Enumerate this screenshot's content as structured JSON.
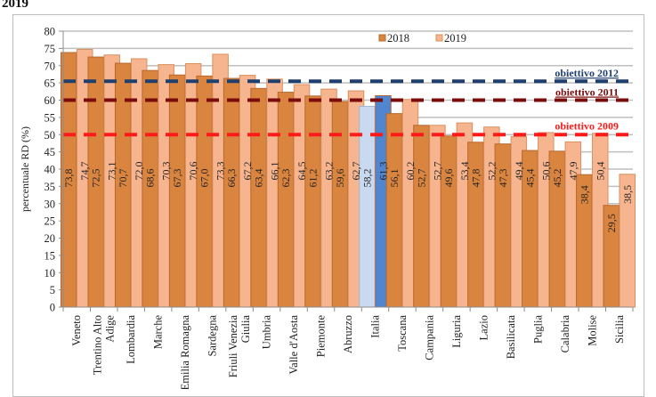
{
  "title": "2019",
  "chart_data": {
    "type": "bar",
    "ylabel": "percentuale RD (%)",
    "xlabel": "",
    "ylim": [
      0,
      80
    ],
    "yticks": [
      0,
      5,
      10,
      15,
      20,
      25,
      30,
      35,
      40,
      45,
      50,
      55,
      60,
      65,
      70,
      75,
      80
    ],
    "grid": true,
    "legend_position": "top-right",
    "categories": [
      [
        "Veneto"
      ],
      [
        "Trentino Alto",
        "Adige"
      ],
      [
        "Lombardia"
      ],
      [
        "Marche"
      ],
      [
        "Emilia Romagna"
      ],
      [
        "Sardegna"
      ],
      [
        "Friuli Venezia",
        "Giulia"
      ],
      [
        "Umbria"
      ],
      [
        "Valle d'Aosta"
      ],
      [
        "Piemonte"
      ],
      [
        "Abruzzo"
      ],
      [
        "Italia"
      ],
      [
        "Toscana"
      ],
      [
        "Campania"
      ],
      [
        "Liguria"
      ],
      [
        "Lazio"
      ],
      [
        "Basilicata"
      ],
      [
        "Puglia"
      ],
      [
        "Calabria"
      ],
      [
        "Molise"
      ],
      [
        "Sicilia"
      ]
    ],
    "series": [
      {
        "name": "2018",
        "color": "#d9843f",
        "highlight_color": "#c9daf0",
        "values": [
          73.8,
          72.5,
          70.7,
          68.6,
          67.3,
          67.0,
          66.3,
          63.4,
          62.3,
          61.2,
          59.6,
          58.2,
          56.1,
          52.7,
          49.6,
          47.8,
          47.3,
          45.4,
          45.2,
          38.4,
          29.5
        ],
        "labels": [
          "73,8",
          "72,5",
          "70,7",
          "68,6",
          "67,3",
          "67,0",
          "66,3",
          "63,4",
          "62,3",
          "61,2",
          "59,6",
          "58,2",
          "56,1",
          "52,7",
          "49,6",
          "47,8",
          "47,3",
          "45,4",
          "45,2",
          "38,4",
          "29,5"
        ]
      },
      {
        "name": "2019",
        "color": "#f7b58f",
        "highlight_color": "#4f86cf",
        "values": [
          74.7,
          73.1,
          72.0,
          70.3,
          70.6,
          73.3,
          67.2,
          66.1,
          64.5,
          63.2,
          62.7,
          61.3,
          60.2,
          52.7,
          53.4,
          52.2,
          49.4,
          50.6,
          47.9,
          50.4,
          38.5
        ],
        "labels": [
          "74,7",
          "73,1",
          "72,0",
          "70,3",
          "70,6",
          "73,3",
          "67,2",
          "66,1",
          "64,5",
          "63,2",
          "62,7",
          "61,3",
          "60,2",
          "52,7",
          "53,4",
          "52,2",
          "49,4",
          "50,6",
          "47,9",
          "50,4",
          "38,5"
        ]
      }
    ],
    "highlight_category_index": 11,
    "reference_lines": [
      {
        "label": "obiettivo 2012",
        "value": 65.5,
        "color": "#1f3f6e"
      },
      {
        "label": "obiettivo 2011",
        "value": 60,
        "color": "#7a0c0c"
      },
      {
        "label": "obiettivo 2009",
        "value": 50,
        "color": "#ff1a1a"
      }
    ]
  }
}
